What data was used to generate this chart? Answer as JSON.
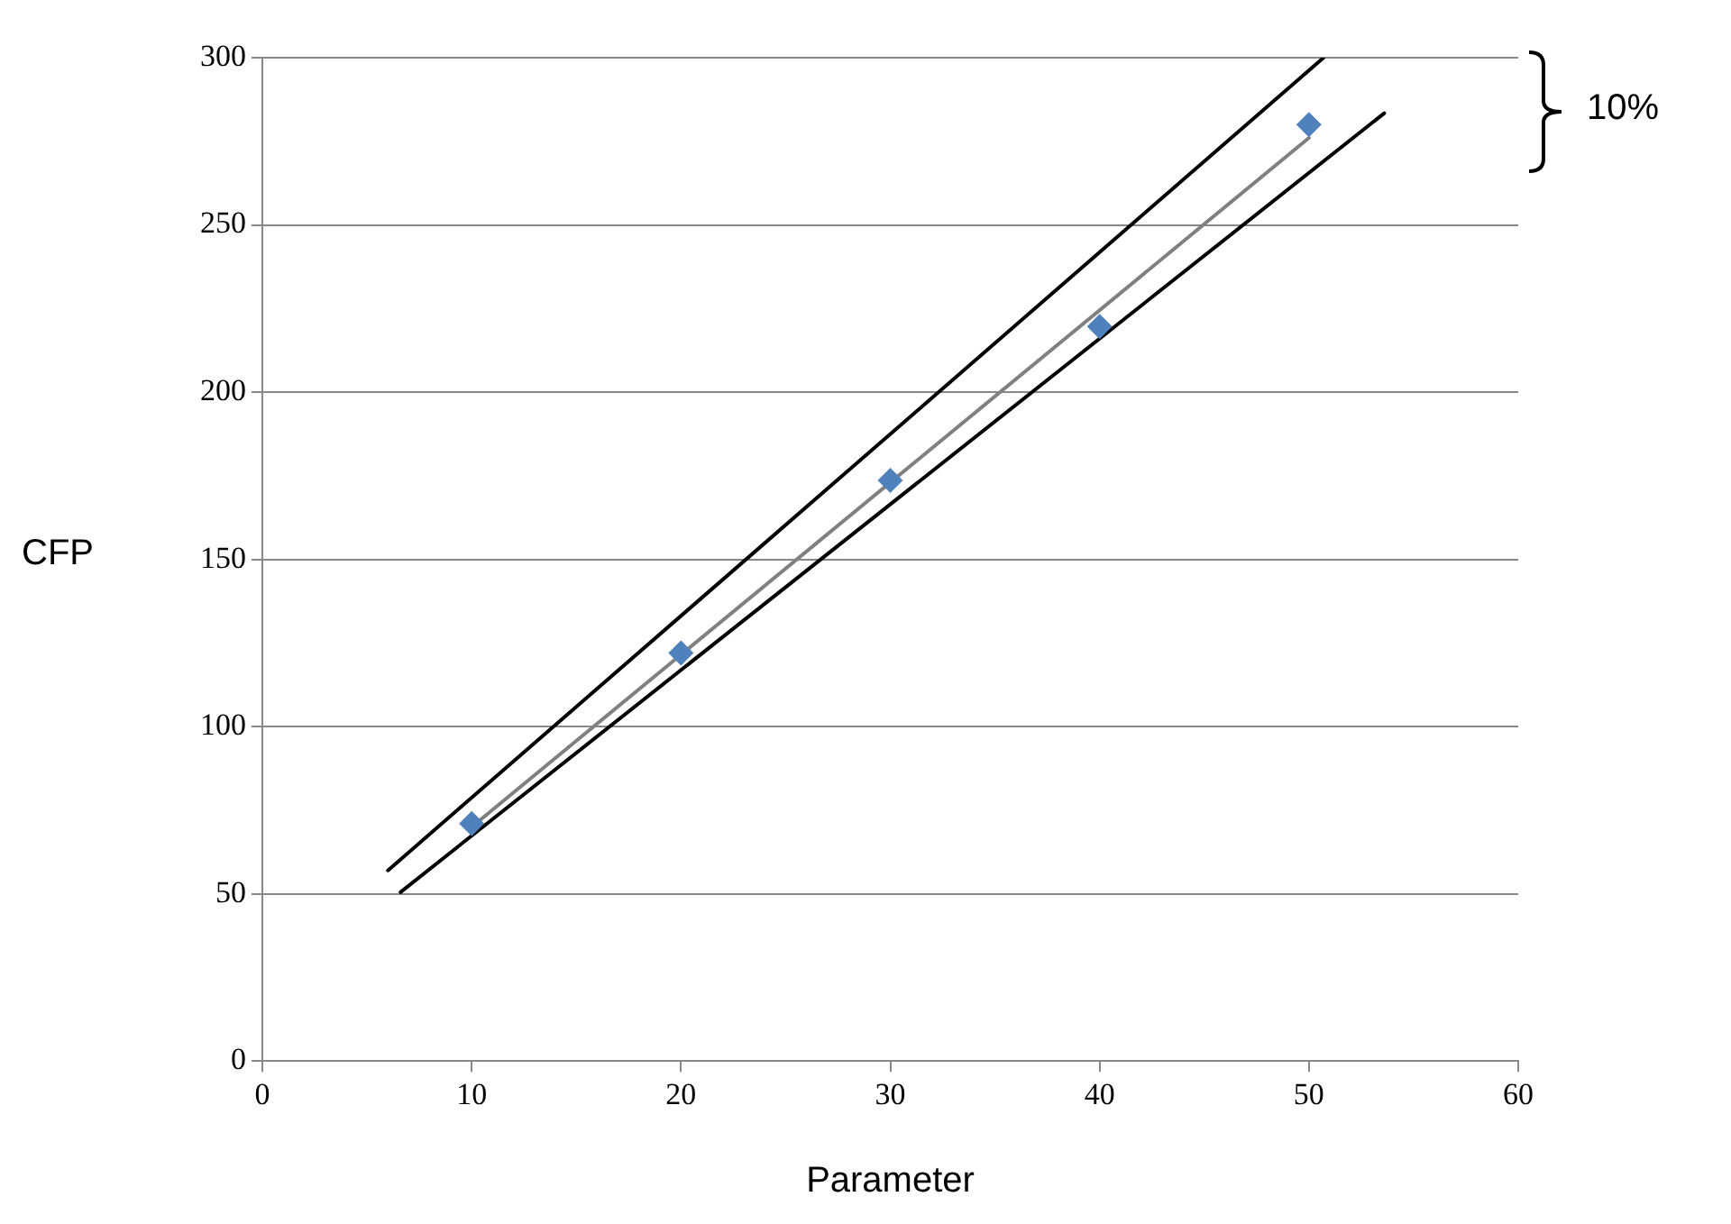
{
  "chart_data": {
    "type": "scatter",
    "xlabel": "Parameter",
    "ylabel": "CFP",
    "xlim": [
      0,
      60
    ],
    "xticks": [
      0,
      10,
      20,
      30,
      40,
      50,
      60
    ],
    "ylim": [
      0,
      300
    ],
    "yticks": [
      0,
      50,
      100,
      150,
      200,
      250,
      300
    ],
    "grid": "y",
    "legend": false,
    "annotations": [
      "10%"
    ],
    "series": [
      {
        "type": "scatter",
        "color": "#4f81bd",
        "marker": "diamond",
        "x": [
          10,
          20,
          30,
          40,
          50
        ],
        "values": [
          71,
          122,
          173.6,
          219.6,
          280
        ]
      },
      {
        "type": "line",
        "color": "#808080",
        "marker": "none",
        "x": [
          10,
          50
        ],
        "values": [
          70,
          276
        ]
      },
      {
        "type": "line",
        "color": "#000000",
        "marker": "none",
        "x": [
          6,
          50.7
        ],
        "values": [
          57,
          300
        ]
      },
      {
        "type": "line",
        "color": "#000000",
        "marker": "none",
        "x": [
          6.6,
          53.6
        ],
        "values": [
          50.5,
          283.4
        ]
      }
    ]
  }
}
